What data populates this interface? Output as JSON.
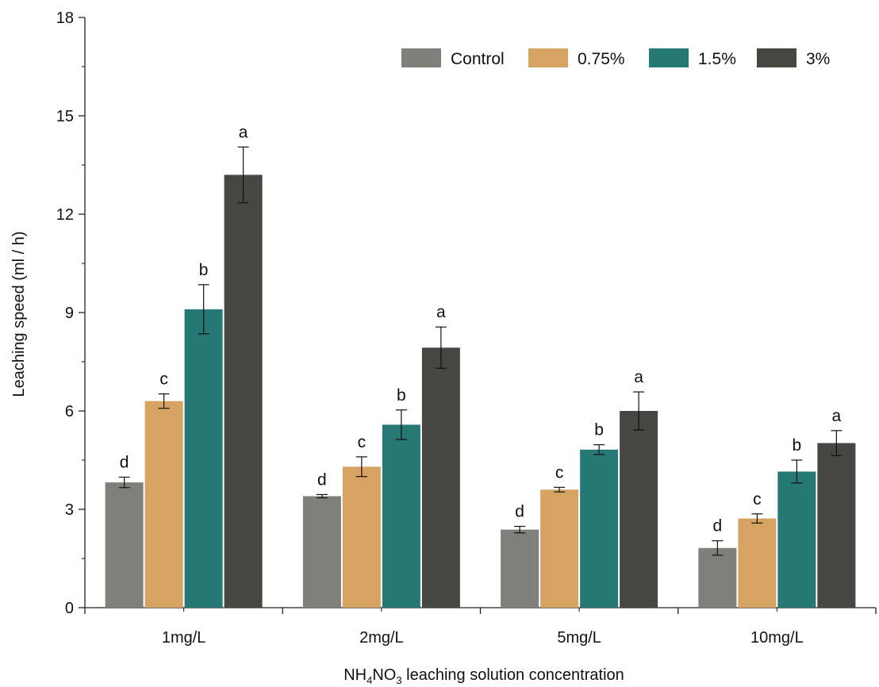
{
  "chart_data": {
    "type": "bar",
    "title": "",
    "xlabel": {
      "prefix": "NH",
      "sub1": "4",
      "mid": "NO",
      "sub2": "3",
      "suffix": " leaching solution concentration"
    },
    "ylabel": "Leaching speed (ml / h)",
    "ylim": [
      0,
      18
    ],
    "yticks": [
      "0",
      "3",
      "6",
      "9",
      "12",
      "15",
      "18"
    ],
    "categories": [
      "1mg/L",
      "2mg/L",
      "5mg/L",
      "10mg/L"
    ],
    "legend_position": "top-right",
    "grid": false,
    "series": [
      {
        "name": "Control",
        "color": "#7f7f7b",
        "values": [
          3.82,
          3.4,
          2.38,
          1.82
        ],
        "errors": [
          0.16,
          0.05,
          0.1,
          0.22
        ],
        "labels": [
          "d",
          "d",
          "d",
          "d"
        ]
      },
      {
        "name": "0.75%",
        "color": "#d6a362",
        "values": [
          6.3,
          4.3,
          3.6,
          2.72
        ],
        "errors": [
          0.22,
          0.3,
          0.07,
          0.14
        ],
        "labels": [
          "c",
          "c",
          "c",
          "c"
        ]
      },
      {
        "name": "1.5%",
        "color": "#267874",
        "values": [
          9.1,
          5.58,
          4.82,
          4.15
        ],
        "errors": [
          0.75,
          0.45,
          0.15,
          0.35
        ],
        "labels": [
          "b",
          "b",
          "b",
          "b"
        ]
      },
      {
        "name": "3%",
        "color": "#464642",
        "values": [
          13.2,
          7.93,
          6.0,
          5.02
        ],
        "errors": [
          0.85,
          0.63,
          0.58,
          0.38
        ],
        "labels": [
          "a",
          "a",
          "a",
          "a"
        ]
      }
    ]
  }
}
